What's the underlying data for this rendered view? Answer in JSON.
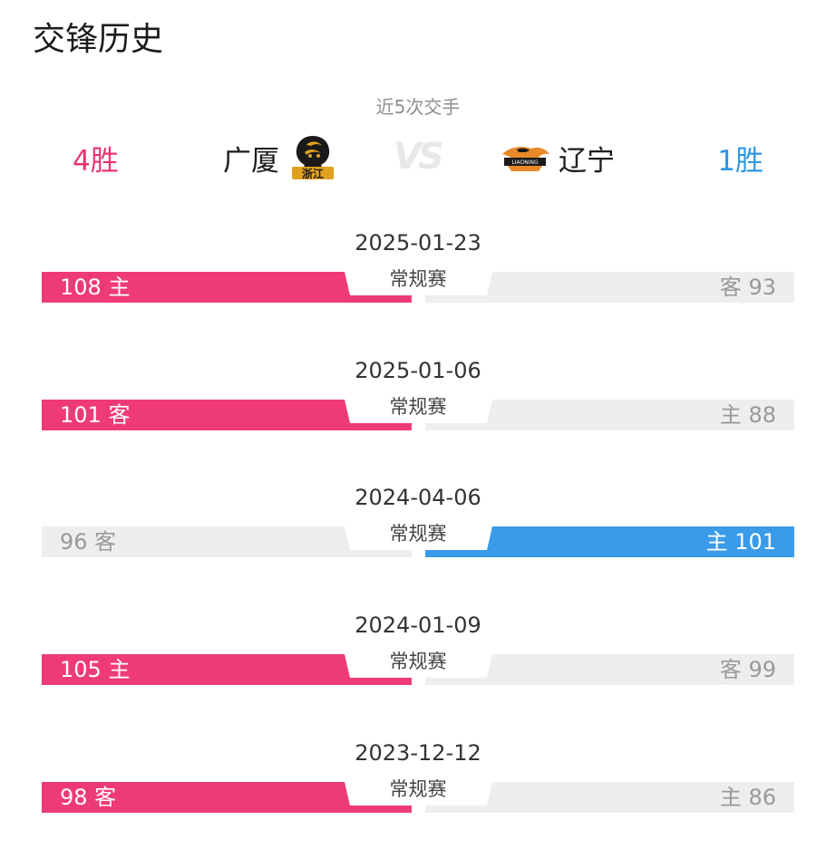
{
  "header": {
    "title": "交锋历史",
    "subtitle": "近5次交手"
  },
  "summary": {
    "left_team": "广厦",
    "left_wins": "4胜",
    "right_team": "辽宁",
    "right_wins": "1胜",
    "vs_text": "VS"
  },
  "logos": {
    "left_logo": "浙江",
    "right_logo": "LIAONING"
  },
  "colors": {
    "left_accent": "#ee3b76",
    "right_accent": "#3a9bea",
    "neutral": "#eeeeee"
  },
  "matches": [
    {
      "date": "2025-01-23",
      "type": "常规赛",
      "left_text": "108 主",
      "right_text": "客 93",
      "winner": "left"
    },
    {
      "date": "2025-01-06",
      "type": "常规赛",
      "left_text": "101 客",
      "right_text": "主 88",
      "winner": "left"
    },
    {
      "date": "2024-04-06",
      "type": "常规赛",
      "left_text": "96 客",
      "right_text": "主 101",
      "winner": "right"
    },
    {
      "date": "2024-01-09",
      "type": "常规赛",
      "left_text": "105 主",
      "right_text": "客 99",
      "winner": "left"
    },
    {
      "date": "2023-12-12",
      "type": "常规赛",
      "left_text": "98 客",
      "right_text": "主 86",
      "winner": "left"
    }
  ]
}
